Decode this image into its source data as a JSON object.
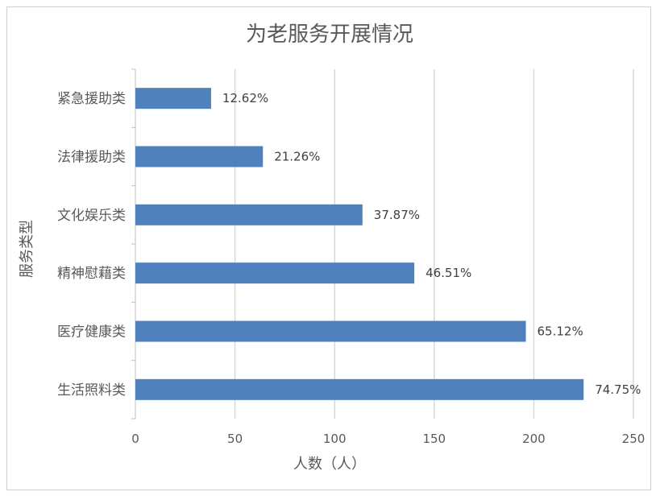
{
  "chart_data": {
    "type": "bar",
    "orientation": "horizontal",
    "title": "为老服务开展情况",
    "xlabel": "人数（人）",
    "ylabel": "服务类型",
    "categories": [
      "紧急援助类",
      "法律援助类",
      "文化娱乐类",
      "精神慰藉类",
      "医疗健康类",
      "生活照料类"
    ],
    "values": [
      38,
      64,
      114,
      140,
      196,
      225
    ],
    "data_labels": [
      "12.62%",
      "21.26%",
      "37.87%",
      "46.51%",
      "65.12%",
      "74.75%"
    ],
    "xlim": [
      0,
      250
    ],
    "xticks": [
      0,
      50,
      100,
      150,
      200,
      250
    ],
    "grid": true,
    "bar_color": "#4f81bd",
    "legend": "none"
  }
}
